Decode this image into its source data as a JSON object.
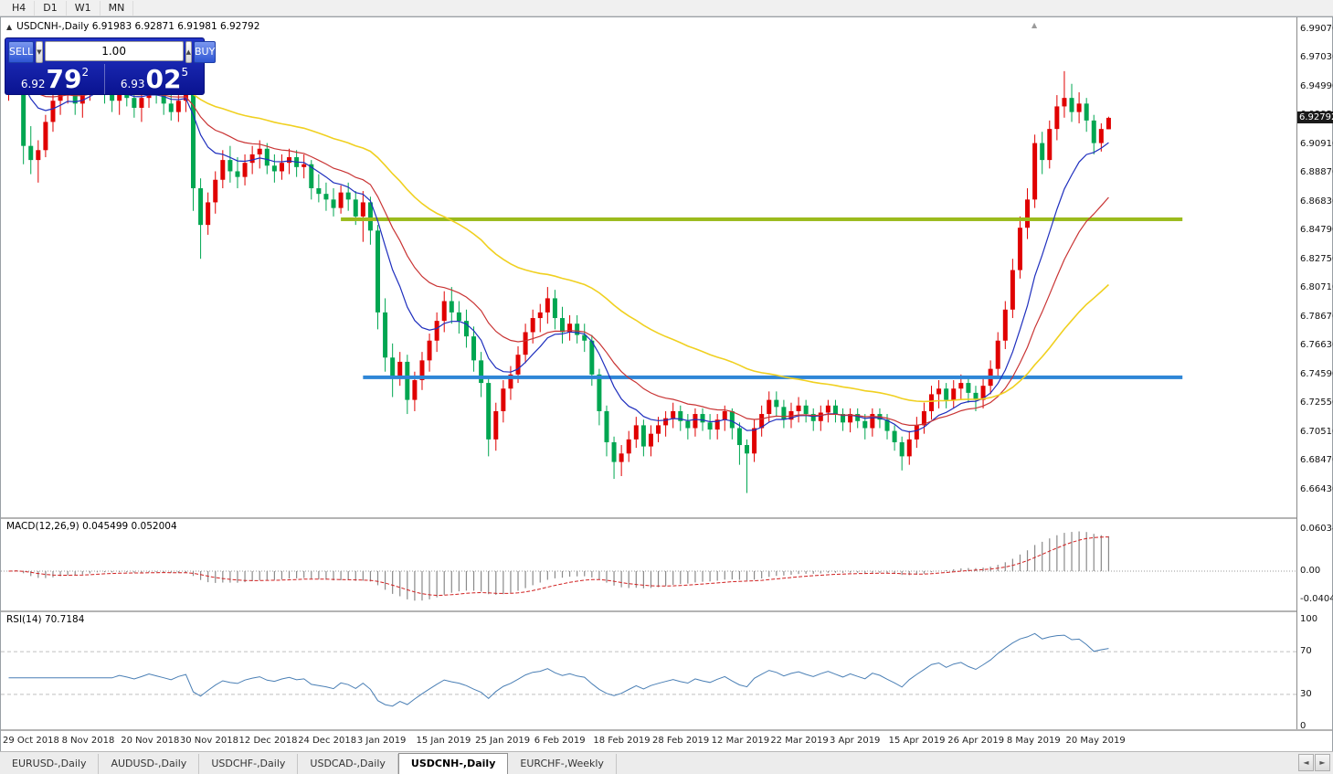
{
  "toolbar": {
    "timeframes": [
      "H4",
      "D1",
      "W1",
      "MN"
    ]
  },
  "chart": {
    "title": "USDCNH-,Daily 6.91983 6.92871 6.91981 6.92792",
    "current_price": "6.92792",
    "price_axis": [
      "6.99070",
      "6.97030",
      "6.94990",
      "6.92950",
      "6.90910",
      "6.88870",
      "6.86830",
      "6.84790",
      "6.82750",
      "6.80710",
      "6.78670",
      "6.76630",
      "6.74590",
      "6.72550",
      "6.70510",
      "6.68470",
      "6.66430"
    ]
  },
  "one_click": {
    "sell_label": "SELL",
    "buy_label": "BUY",
    "volume": "1.00",
    "sell_price": {
      "prefix": "6.92",
      "big": "79",
      "sup": "2"
    },
    "buy_price": {
      "prefix": "6.93",
      "big": "02",
      "sup": "5"
    }
  },
  "macd": {
    "label": "MACD(12,26,9) 0.045499 0.052004",
    "axis": [
      "0.060342",
      "0.00",
      "-0.040413"
    ]
  },
  "rsi": {
    "label": "RSI(14) 70.7184",
    "axis": [
      "100",
      "70",
      "30",
      "0"
    ]
  },
  "dates": [
    "29 Oct 2018",
    "8 Nov 2018",
    "20 Nov 2018",
    "30 Nov 2018",
    "12 Dec 2018",
    "24 Dec 2018",
    "3 Jan 2019",
    "15 Jan 2019",
    "25 Jan 2019",
    "6 Feb 2019",
    "18 Feb 2019",
    "28 Feb 2019",
    "12 Mar 2019",
    "22 Mar 2019",
    "3 Apr 2019",
    "15 Apr 2019",
    "26 Apr 2019",
    "8 May 2019",
    "20 May 2019"
  ],
  "tabs": [
    {
      "label": "EURUSD-,Daily",
      "active": false
    },
    {
      "label": "AUDUSD-,Daily",
      "active": false
    },
    {
      "label": "USDCHF-,Daily",
      "active": false
    },
    {
      "label": "USDCAD-,Daily",
      "active": false
    },
    {
      "label": "USDCNH-,Daily",
      "active": true
    },
    {
      "label": "EURCHF-,Weekly",
      "active": false
    }
  ],
  "icons": {
    "collapse": "▲",
    "shift_marker": "▲",
    "spinner_down": "▼",
    "spinner_up": "▲",
    "tab_scroll_left": "◄",
    "tab_scroll_right": "►"
  },
  "colors": {
    "candle_up": "#e00000",
    "candle_down": "#00a651",
    "hline_olive": "#9bbb1c",
    "hline_blue": "#2f86d6",
    "ma_fast": "#1f2fbe",
    "ma_mid": "#c93434",
    "ma_slow": "#f0d020",
    "macd_histogram": "#8a8a8a",
    "macd_signal": "#d02020",
    "rsi_line": "#4a7fb5",
    "panel_navy": "#0a1390",
    "button_blue": "#2e55d4"
  },
  "chart_data": {
    "type": "candlestick",
    "title": "USDCNH-,Daily",
    "last_price": 6.92792,
    "ylim": [
      6.6456,
      6.9991
    ],
    "x_tick_indices": [
      0,
      8,
      16,
      24,
      32,
      40,
      48,
      56,
      64,
      72,
      80,
      88,
      96,
      104,
      112,
      120,
      128,
      136,
      144
    ],
    "moving_averages": [
      {
        "period": 10,
        "color": "#1f2fbe",
        "width": 1.2
      },
      {
        "period": 20,
        "color": "#c93434",
        "width": 1.2
      },
      {
        "period": 50,
        "color": "#f0d020",
        "width": 1.6
      }
    ],
    "horizontal_lines": [
      {
        "price": 6.856,
        "color": "#9bbb1c",
        "start_index": 45,
        "end_index": 159
      },
      {
        "price": 6.744,
        "color": "#2f86d6",
        "start_index": 48,
        "end_index": 159
      }
    ],
    "indicators": [
      {
        "type": "macd",
        "params": [
          12,
          26,
          9
        ],
        "current": [
          0.045499,
          0.052004
        ],
        "axis_values": [
          0.060342,
          0.0,
          -0.040413
        ]
      },
      {
        "type": "rsi",
        "params": [
          14
        ],
        "current": 70.7184,
        "levels": [
          70,
          30
        ],
        "ylim": [
          0,
          100
        ]
      }
    ],
    "ohlc": [
      [
        6.948,
        6.962,
        6.94,
        6.958
      ],
      [
        6.958,
        6.98,
        6.95,
        6.973
      ],
      [
        6.973,
        6.977,
        6.895,
        6.908
      ],
      [
        6.908,
        6.922,
        6.888,
        6.898
      ],
      [
        6.898,
        6.912,
        6.882,
        6.905
      ],
      [
        6.905,
        6.93,
        6.9,
        6.925
      ],
      [
        6.925,
        6.945,
        6.918,
        6.94
      ],
      [
        6.94,
        6.955,
        6.93,
        6.948
      ],
      [
        6.948,
        6.96,
        6.938,
        6.952
      ],
      [
        6.952,
        6.958,
        6.93,
        6.938
      ],
      [
        6.938,
        6.952,
        6.928,
        6.945
      ],
      [
        6.945,
        6.962,
        6.94,
        6.955
      ],
      [
        6.955,
        6.968,
        6.945,
        6.96
      ],
      [
        6.96,
        6.965,
        6.938,
        6.945
      ],
      [
        6.945,
        6.955,
        6.932,
        6.94
      ],
      [
        6.94,
        6.952,
        6.93,
        6.948
      ],
      [
        6.948,
        6.958,
        6.936,
        6.942
      ],
      [
        6.942,
        6.95,
        6.928,
        6.935
      ],
      [
        6.935,
        6.948,
        6.925,
        6.942
      ],
      [
        6.942,
        6.955,
        6.935,
        6.95
      ],
      [
        6.95,
        6.958,
        6.938,
        6.944
      ],
      [
        6.944,
        6.95,
        6.93,
        6.938
      ],
      [
        6.938,
        6.946,
        6.926,
        6.932
      ],
      [
        6.932,
        6.944,
        6.925,
        6.94
      ],
      [
        6.94,
        6.95,
        6.932,
        6.945
      ],
      [
        6.945,
        6.948,
        6.862,
        6.878
      ],
      [
        6.878,
        6.885,
        6.828,
        6.852
      ],
      [
        6.852,
        6.875,
        6.845,
        6.868
      ],
      [
        6.868,
        6.89,
        6.86,
        6.884
      ],
      [
        6.884,
        6.905,
        6.878,
        6.898
      ],
      [
        6.898,
        6.908,
        6.882,
        6.89
      ],
      [
        6.89,
        6.9,
        6.878,
        6.886
      ],
      [
        6.886,
        6.902,
        6.88,
        6.896
      ],
      [
        6.896,
        6.908,
        6.888,
        6.902
      ],
      [
        6.902,
        6.912,
        6.892,
        6.906
      ],
      [
        6.906,
        6.91,
        6.888,
        6.894
      ],
      [
        6.894,
        6.902,
        6.882,
        6.89
      ],
      [
        6.89,
        6.902,
        6.884,
        6.896
      ],
      [
        6.896,
        6.906,
        6.888,
        6.9
      ],
      [
        6.9,
        6.905,
        6.886,
        6.893
      ],
      [
        6.893,
        6.902,
        6.885,
        6.895
      ],
      [
        6.895,
        6.898,
        6.87,
        6.878
      ],
      [
        6.878,
        6.888,
        6.868,
        6.874
      ],
      [
        6.874,
        6.882,
        6.862,
        6.87
      ],
      [
        6.87,
        6.878,
        6.858,
        6.864
      ],
      [
        6.864,
        6.88,
        6.86,
        6.875
      ],
      [
        6.875,
        6.882,
        6.862,
        6.87
      ],
      [
        6.87,
        6.876,
        6.852,
        6.858
      ],
      [
        6.858,
        6.876,
        6.84,
        6.868
      ],
      [
        6.868,
        6.872,
        6.838,
        6.848
      ],
      [
        6.848,
        6.852,
        6.778,
        6.79
      ],
      [
        6.79,
        6.8,
        6.748,
        6.758
      ],
      [
        6.758,
        6.768,
        6.73,
        6.744
      ],
      [
        6.744,
        6.762,
        6.738,
        6.755
      ],
      [
        6.755,
        6.76,
        6.718,
        6.728
      ],
      [
        6.728,
        6.748,
        6.72,
        6.742
      ],
      [
        6.742,
        6.762,
        6.735,
        6.756
      ],
      [
        6.756,
        6.775,
        6.748,
        6.77
      ],
      [
        6.77,
        6.79,
        6.762,
        6.784
      ],
      [
        6.784,
        6.805,
        6.776,
        6.798
      ],
      [
        6.798,
        6.808,
        6.782,
        6.79
      ],
      [
        6.79,
        6.798,
        6.775,
        6.784
      ],
      [
        6.784,
        6.792,
        6.765,
        6.773
      ],
      [
        6.773,
        6.78,
        6.748,
        6.756
      ],
      [
        6.756,
        6.762,
        6.73,
        6.74
      ],
      [
        6.74,
        6.744,
        6.688,
        6.7
      ],
      [
        6.7,
        6.726,
        6.692,
        6.72
      ],
      [
        6.72,
        6.742,
        6.712,
        6.736
      ],
      [
        6.736,
        6.752,
        6.728,
        6.746
      ],
      [
        6.746,
        6.766,
        6.74,
        6.76
      ],
      [
        6.76,
        6.782,
        6.754,
        6.776
      ],
      [
        6.776,
        6.792,
        6.768,
        6.786
      ],
      [
        6.786,
        6.796,
        6.776,
        6.79
      ],
      [
        6.79,
        6.808,
        6.782,
        6.8
      ],
      [
        6.8,
        6.806,
        6.778,
        6.786
      ],
      [
        6.786,
        6.794,
        6.768,
        6.776
      ],
      [
        6.776,
        6.788,
        6.77,
        6.782
      ],
      [
        6.782,
        6.788,
        6.768,
        6.774
      ],
      [
        6.774,
        6.782,
        6.762,
        6.77
      ],
      [
        6.77,
        6.774,
        6.738,
        6.746
      ],
      [
        6.746,
        6.75,
        6.71,
        6.72
      ],
      [
        6.72,
        6.724,
        6.688,
        6.698
      ],
      [
        6.698,
        6.702,
        6.672,
        6.684
      ],
      [
        6.684,
        6.696,
        6.674,
        6.69
      ],
      [
        6.69,
        6.706,
        6.684,
        6.7
      ],
      [
        6.7,
        6.716,
        6.694,
        6.71
      ],
      [
        6.71,
        6.714,
        6.688,
        6.695
      ],
      [
        6.695,
        6.71,
        6.688,
        6.704
      ],
      [
        6.704,
        6.716,
        6.698,
        6.71
      ],
      [
        6.71,
        6.72,
        6.702,
        6.715
      ],
      [
        6.715,
        6.726,
        6.708,
        6.72
      ],
      [
        6.72,
        6.724,
        6.706,
        6.713
      ],
      [
        6.713,
        6.718,
        6.7,
        6.708
      ],
      [
        6.708,
        6.722,
        6.702,
        6.718
      ],
      [
        6.718,
        6.722,
        6.706,
        6.712
      ],
      [
        6.712,
        6.718,
        6.7,
        6.707
      ],
      [
        6.707,
        6.718,
        6.7,
        6.714
      ],
      [
        6.714,
        6.724,
        6.706,
        6.72
      ],
      [
        6.72,
        6.722,
        6.7,
        6.708
      ],
      [
        6.708,
        6.712,
        6.682,
        6.696
      ],
      [
        6.696,
        6.7,
        6.662,
        6.69
      ],
      [
        6.69,
        6.714,
        6.684,
        6.708
      ],
      [
        6.708,
        6.724,
        6.702,
        6.718
      ],
      [
        6.718,
        6.734,
        6.712,
        6.728
      ],
      [
        6.728,
        6.734,
        6.716,
        6.723
      ],
      [
        6.723,
        6.728,
        6.708,
        6.714
      ],
      [
        6.714,
        6.726,
        6.708,
        6.72
      ],
      [
        6.72,
        6.73,
        6.712,
        6.724
      ],
      [
        6.724,
        6.728,
        6.712,
        6.718
      ],
      [
        6.718,
        6.722,
        6.706,
        6.713
      ],
      [
        6.713,
        6.724,
        6.706,
        6.719
      ],
      [
        6.719,
        6.728,
        6.712,
        6.724
      ],
      [
        6.724,
        6.728,
        6.712,
        6.718
      ],
      [
        6.718,
        6.722,
        6.706,
        6.712
      ],
      [
        6.712,
        6.722,
        6.705,
        6.718
      ],
      [
        6.718,
        6.722,
        6.708,
        6.713
      ],
      [
        6.713,
        6.718,
        6.7,
        6.708
      ],
      [
        6.708,
        6.722,
        6.702,
        6.718
      ],
      [
        6.718,
        6.722,
        6.708,
        6.714
      ],
      [
        6.714,
        6.718,
        6.7,
        6.706
      ],
      [
        6.706,
        6.71,
        6.692,
        6.698
      ],
      [
        6.698,
        6.702,
        6.678,
        6.688
      ],
      [
        6.688,
        6.706,
        6.682,
        6.7
      ],
      [
        6.7,
        6.716,
        6.694,
        6.71
      ],
      [
        6.71,
        6.726,
        6.704,
        6.72
      ],
      [
        6.72,
        6.738,
        6.714,
        6.732
      ],
      [
        6.732,
        6.742,
        6.722,
        6.736
      ],
      [
        6.736,
        6.74,
        6.722,
        6.728
      ],
      [
        6.728,
        6.742,
        6.722,
        6.736
      ],
      [
        6.736,
        6.746,
        6.728,
        6.74
      ],
      [
        6.74,
        6.744,
        6.726,
        6.733
      ],
      [
        6.733,
        6.738,
        6.72,
        6.728
      ],
      [
        6.728,
        6.744,
        6.722,
        6.738
      ],
      [
        6.738,
        6.756,
        6.732,
        6.75
      ],
      [
        6.75,
        6.776,
        6.744,
        6.77
      ],
      [
        6.77,
        6.798,
        6.764,
        6.792
      ],
      [
        6.792,
        6.828,
        6.786,
        6.82
      ],
      [
        6.82,
        6.858,
        6.814,
        6.85
      ],
      [
        6.85,
        6.878,
        6.842,
        6.87
      ],
      [
        6.87,
        6.916,
        6.864,
        6.91
      ],
      [
        6.91,
        6.918,
        6.888,
        6.898
      ],
      [
        6.898,
        6.926,
        6.892,
        6.92
      ],
      [
        6.92,
        6.944,
        6.912,
        6.936
      ],
      [
        6.936,
        6.961,
        6.928,
        6.942
      ],
      [
        6.942,
        6.952,
        6.925,
        6.932
      ],
      [
        6.932,
        6.946,
        6.924,
        6.938
      ],
      [
        6.938,
        6.942,
        6.918,
        6.926
      ],
      [
        6.926,
        6.93,
        6.902,
        6.91
      ],
      [
        6.91,
        6.924,
        6.904,
        6.92
      ],
      [
        6.9198,
        6.9287,
        6.9198,
        6.9279
      ]
    ]
  }
}
